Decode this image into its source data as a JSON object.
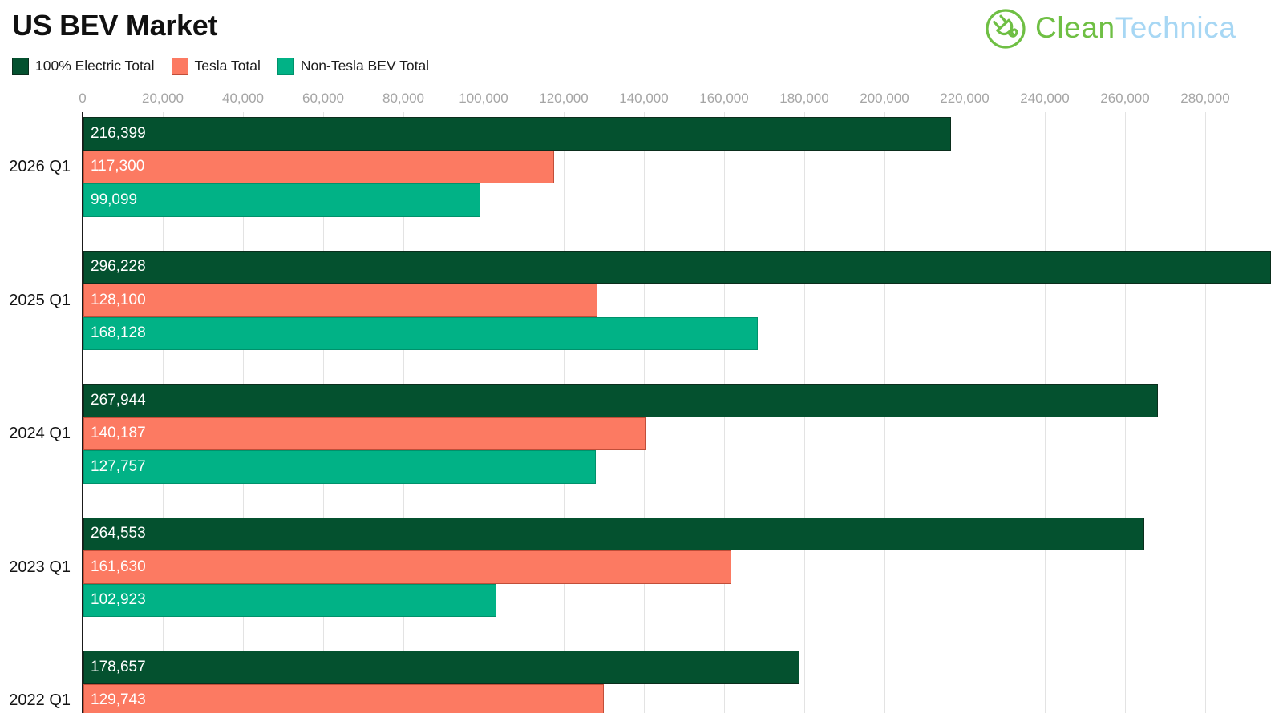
{
  "header": {
    "title": "US BEV Market"
  },
  "logo": {
    "green_text": "Clean",
    "blue_text": "Technica",
    "green_color": "#6FBF44",
    "blue_color": "#A7D7F4",
    "icon": "plug-in-circle-icon"
  },
  "chart_data": {
    "type": "bar",
    "orientation": "horizontal",
    "title": "US BEV Market",
    "legend_position": "top-left",
    "grid": "vertical",
    "categories": [
      "2026 Q1",
      "2025 Q1",
      "2024 Q1",
      "2023 Q1",
      "2022 Q1"
    ],
    "series": [
      {
        "name": "100% Electric Total",
        "color": "#04512F",
        "border": "#0B2E1D",
        "values": [
          216399,
          296228,
          267944,
          264553,
          178657
        ],
        "labels": [
          "216,399",
          "296,228",
          "267,944",
          "264,553",
          "178,657"
        ]
      },
      {
        "name": "Tesla Total",
        "color": "#FC7A62",
        "border": "#C14E39",
        "values": [
          117300,
          128100,
          140187,
          161630,
          129743
        ],
        "labels": [
          "117,300",
          "128,100",
          "140,187",
          "161,630",
          "129,743"
        ]
      },
      {
        "name": "Non-Tesla BEV Total",
        "color": "#01B286",
        "border": "#00916B",
        "values": [
          99099,
          168128,
          127757,
          102923,
          null
        ],
        "labels": [
          "99,099",
          "168,128",
          "127,757",
          "102,923",
          null
        ]
      }
    ],
    "axis": {
      "ticks": [
        0,
        20000,
        40000,
        60000,
        80000,
        100000,
        120000,
        140000,
        160000,
        180000,
        200000,
        220000,
        240000,
        260000,
        280000
      ],
      "tick_labels": [
        "0",
        "20,000",
        "40,000",
        "60,000",
        "80,000",
        "100,000",
        "120,000",
        "140,000",
        "160,000",
        "180,000",
        "200,000",
        "220,000",
        "240,000",
        "260,000",
        "280,000"
      ],
      "step": 20000,
      "xlim": [
        0,
        299000
      ]
    },
    "note": "2022 Q1 Non-Tesla bar is cut off below the visible area; 2022 Q1 Tesla bar is partially clipped at the bottom edge."
  }
}
